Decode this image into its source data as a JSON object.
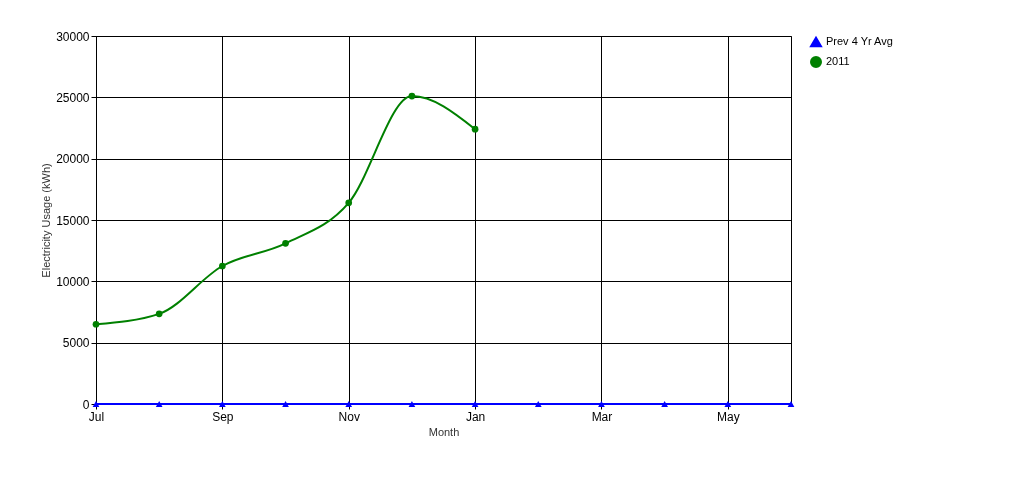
{
  "chart_data": {
    "type": "line",
    "xlabel": "Month",
    "ylabel": "Electricity Usage (kWh)",
    "categories": [
      "Jul",
      null,
      "Sep",
      null,
      "Nov",
      null,
      "Jan",
      null,
      "Mar",
      null,
      "May",
      null
    ],
    "series": [
      {
        "name": "Prev 4 Yr Avg",
        "color": "#0000ff",
        "marker": "triangle",
        "values": [
          0,
          0,
          0,
          0,
          0,
          0,
          0,
          0,
          0,
          0,
          0,
          0
        ]
      },
      {
        "name": "2011",
        "color": "#008000",
        "marker": "circle",
        "values": [
          6500,
          7350,
          11250,
          13100,
          16400,
          25100,
          22400,
          null,
          null,
          null,
          null,
          null
        ]
      }
    ],
    "ylim": [
      0,
      30000
    ],
    "yticks": [
      0,
      5000,
      10000,
      15000,
      20000,
      25000,
      30000
    ],
    "grid": true,
    "legend": "top right",
    "line_style": "solid"
  }
}
